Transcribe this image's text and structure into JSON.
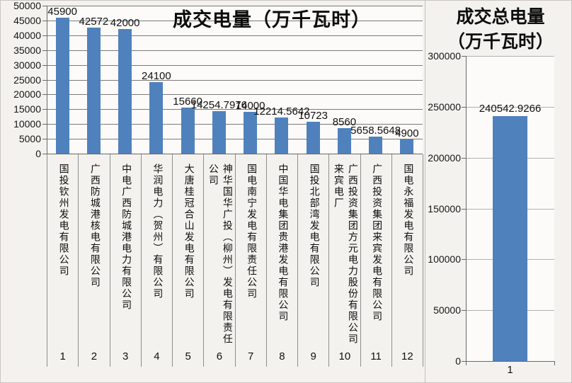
{
  "page": {
    "background": "#f4f2ee",
    "plot_background": "#fcfbf9",
    "border_color": "#c9c6c0",
    "grid_color": "#7a7a78",
    "grid_color_light": "#b3b1ad",
    "axis_color": "#6b6966",
    "bar_color": "#4f81bd"
  },
  "chart_data": [
    {
      "type": "bar",
      "title": "成交电量（万千瓦时）",
      "categories": [
        "国投钦州发电有限公司",
        "广西防城港核电有限公司",
        "中电广西防城港电力有限公司",
        "华润电力（贺州）有限公司",
        "大唐桂冠合山发电有限公司",
        "神华国华广投（柳州）发电有限责任公司",
        "国电南宁发电有限责任公司",
        "中国华电集团贵港发电有限公司",
        "国投北部湾发电有限公司",
        "广西投资集团方元电力股份有限公司来宾电厂",
        "广西投资集团来宾发电有限公司",
        "国电永福发电有限公司"
      ],
      "x_tick_labels": [
        "1",
        "2",
        "3",
        "4",
        "5",
        "6",
        "7",
        "8",
        "9",
        "10",
        "11",
        "12"
      ],
      "values": [
        45900,
        42572,
        42000,
        24100,
        15660,
        14254.7976,
        14000,
        12214.5642,
        10723,
        8560,
        5658.5648,
        4900
      ],
      "value_labels": [
        "45900",
        "42572",
        "42000",
        "24100",
        "15660",
        "14254.7976",
        "14000",
        "12214.5642",
        "10723",
        "8560",
        "5658.5648",
        "4900"
      ],
      "xlabel": "",
      "ylabel": "",
      "ylim": [
        0,
        50000
      ],
      "ytick_interval": 5000,
      "ytick_labels": [
        "50000",
        "45000",
        "40000",
        "35000",
        "30000",
        "25000",
        "20000",
        "15000",
        "10000",
        "5000",
        "0"
      ],
      "grid": true,
      "legend": "none",
      "bar_color": "#4f81bd"
    },
    {
      "type": "bar",
      "title": "成交总电量（万千瓦时）",
      "title_lines": [
        "成交总电量",
        "（万千瓦时）"
      ],
      "categories": [
        "1"
      ],
      "x_tick_labels": [
        "1"
      ],
      "values": [
        240542.9266
      ],
      "value_labels": [
        "240542.9266"
      ],
      "xlabel": "",
      "ylabel": "",
      "ylim": [
        0,
        300000
      ],
      "ytick_interval": 50000,
      "ytick_labels": [
        "300000",
        "250000",
        "200000",
        "150000",
        "100000",
        "50000",
        "0"
      ],
      "grid": true,
      "legend": "none",
      "bar_color": "#4f81bd"
    }
  ]
}
